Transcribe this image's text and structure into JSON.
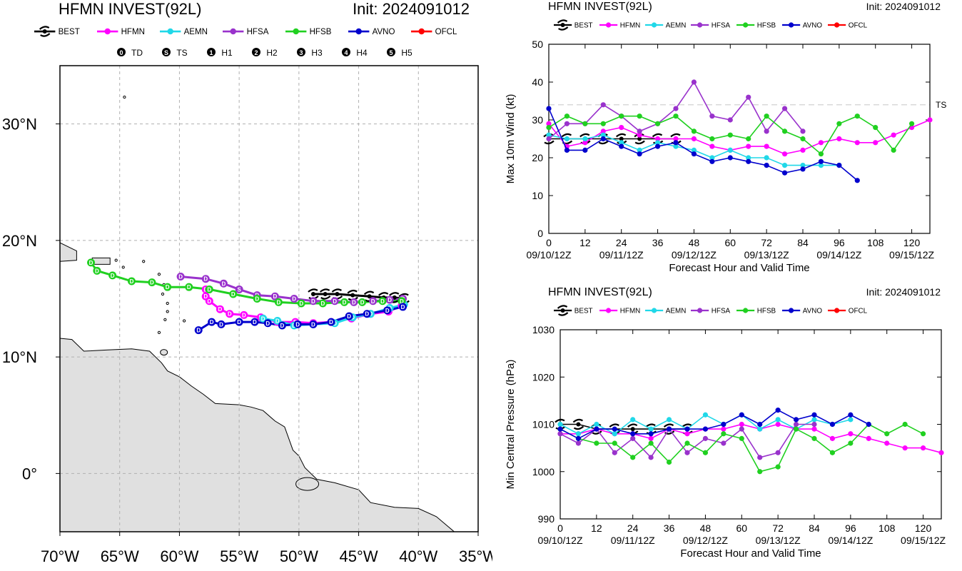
{
  "colors": {
    "BEST": "#000000",
    "HFMN": "#ff00ff",
    "AEMN": "#20d8e8",
    "HFSA": "#9932cc",
    "HFSB": "#20d020",
    "AVNO": "#0000cd",
    "OFCL": "#ff0000",
    "land": "#e0e0e0",
    "grid": "#b0b0b0",
    "ts_line": "#d8d8d8"
  },
  "legend": {
    "models": [
      "BEST",
      "HFMN",
      "AEMN",
      "HFSA",
      "HFSB",
      "AVNO",
      "OFCL"
    ],
    "intensity": [
      {
        "symbol": "0",
        "label": "TD"
      },
      {
        "symbol": "S",
        "label": "TS"
      },
      {
        "symbol": "1",
        "label": "H1"
      },
      {
        "symbol": "2",
        "label": "H2"
      },
      {
        "symbol": "3",
        "label": "H3"
      },
      {
        "symbol": "4",
        "label": "H4"
      },
      {
        "symbol": "5",
        "label": "H5"
      }
    ]
  },
  "chart_data": [
    {
      "type": "scatter",
      "name": "track-map",
      "title": "HFMN INVEST(92L)",
      "subtitle": "Init: 2024091012",
      "xlabel": "",
      "ylabel": "",
      "xlim": [
        -70,
        -35
      ],
      "ylim": [
        -5,
        35
      ],
      "x_ticks": [
        "70°W",
        "65°W",
        "60°W",
        "55°W",
        "50°W",
        "45°W",
        "40°W",
        "35°W"
      ],
      "y_ticks": [
        "0°",
        "10°N",
        "20°N",
        "30°N"
      ],
      "grid": true,
      "series": [
        {
          "name": "BEST",
          "points": [
            [
              -41.2,
              15.0
            ],
            [
              -42.0,
              15.1
            ],
            [
              -42.9,
              15.1
            ],
            [
              -44.1,
              15.2
            ],
            [
              -45.5,
              15.3
            ],
            [
              -46.8,
              15.4
            ],
            [
              -47.8,
              15.4
            ],
            [
              -48.8,
              15.4
            ]
          ],
          "labels": [
            "TD",
            "TD",
            "TD",
            "TD",
            "TD",
            "TD",
            "TD",
            "TD"
          ]
        },
        {
          "name": "HFMN",
          "points": [
            [
              -41.4,
              14.4
            ],
            [
              -42.5,
              13.9
            ],
            [
              -44.0,
              13.7
            ],
            [
              -45.6,
              13.3
            ],
            [
              -47.3,
              13.0
            ],
            [
              -48.8,
              12.9
            ],
            [
              -50.3,
              13.0
            ],
            [
              -51.8,
              13.0
            ],
            [
              -53.2,
              13.4
            ],
            [
              -54.6,
              13.6
            ],
            [
              -55.8,
              13.7
            ],
            [
              -56.6,
              14.1
            ],
            [
              -57.5,
              14.8
            ],
            [
              -57.8,
              15.2
            ],
            [
              -57.8,
              15.8
            ]
          ],
          "labels": [
            "TD",
            "TD",
            "TD",
            "TD",
            "TD",
            "TD",
            "TD",
            "TD",
            "TD",
            "TD",
            "TD",
            "TD",
            "TD",
            "TD",
            "TD"
          ]
        },
        {
          "name": "AEMN",
          "points": [
            [
              -41.2,
              14.5
            ],
            [
              -42.4,
              14.2
            ],
            [
              -44.0,
              13.7
            ],
            [
              -45.5,
              13.4
            ],
            [
              -47.0,
              12.9
            ],
            [
              -48.8,
              12.8
            ],
            [
              -50.4,
              12.7
            ],
            [
              -51.8,
              13.1
            ],
            [
              -53.0,
              13.3
            ]
          ],
          "labels": [
            "TD",
            "TD",
            "TD",
            "TD",
            "TD",
            "TD",
            "TD",
            "TD",
            "TD"
          ]
        },
        {
          "name": "HFSA",
          "points": [
            [
              -41.3,
              15.0
            ],
            [
              -42.4,
              14.9
            ],
            [
              -43.8,
              14.8
            ],
            [
              -45.4,
              14.7
            ],
            [
              -47.0,
              14.8
            ],
            [
              -48.8,
              14.8
            ],
            [
              -50.4,
              15.0
            ],
            [
              -52.0,
              15.2
            ],
            [
              -53.5,
              15.3
            ],
            [
              -55.0,
              15.8
            ],
            [
              -56.3,
              16.3
            ],
            [
              -57.8,
              16.7
            ],
            [
              -59.9,
              16.9
            ]
          ],
          "labels": [
            "TD",
            "TD",
            "TD",
            "TD",
            "TD",
            "TD",
            "TD",
            "TD",
            "TD",
            "TS",
            "TD",
            "TD",
            "TD"
          ]
        },
        {
          "name": "HFSB",
          "points": [
            [
              -41.4,
              14.8
            ],
            [
              -43.0,
              14.8
            ],
            [
              -44.7,
              14.7
            ],
            [
              -46.2,
              14.7
            ],
            [
              -48.0,
              14.6
            ],
            [
              -49.8,
              14.6
            ],
            [
              -51.7,
              14.7
            ],
            [
              -53.5,
              15.0
            ],
            [
              -55.5,
              15.4
            ],
            [
              -57.5,
              15.8
            ],
            [
              -59.2,
              16.0
            ],
            [
              -61.0,
              16.0
            ],
            [
              -62.3,
              16.4
            ],
            [
              -64.0,
              16.5
            ],
            [
              -65.6,
              17.0
            ],
            [
              -66.9,
              17.4
            ],
            [
              -67.4,
              18.1
            ]
          ],
          "labels": [
            "TD",
            "TD",
            "TD",
            "TD",
            "TD",
            "TD",
            "TD",
            "TD",
            "TD",
            "TD",
            "TD",
            "TD",
            "TD",
            "TD",
            "TD",
            "TD",
            "TD"
          ]
        },
        {
          "name": "AVNO",
          "points": [
            [
              -41.3,
              14.3
            ],
            [
              -42.6,
              14.0
            ],
            [
              -44.3,
              13.7
            ],
            [
              -45.8,
              13.5
            ],
            [
              -47.3,
              13.0
            ],
            [
              -48.8,
              12.8
            ],
            [
              -50.1,
              12.8
            ],
            [
              -51.4,
              12.7
            ],
            [
              -52.6,
              12.9
            ],
            [
              -53.7,
              13.0
            ],
            [
              -55.0,
              13.0
            ],
            [
              -56.5,
              12.8
            ],
            [
              -57.3,
              13.0
            ],
            [
              -58.4,
              12.3
            ]
          ],
          "labels": [
            "TD",
            "TD",
            "TD",
            "TD",
            "TD",
            "TD",
            "TD",
            "TD",
            "TD",
            "TD",
            "TD",
            "TD",
            "TD",
            "TD"
          ]
        }
      ]
    },
    {
      "type": "line",
      "name": "wind-chart",
      "title": "HFMN INVEST(92L)",
      "subtitle": "Init: 2024091012",
      "xlabel": "Forecast Hour and Valid Time",
      "ylabel": "Max 10m Wind (kt)",
      "xlim": [
        0,
        126
      ],
      "ylim": [
        0,
        50
      ],
      "x_ticks": [
        0,
        12,
        24,
        36,
        48,
        60,
        72,
        84,
        96,
        108,
        120
      ],
      "x_dates": [
        "09/10/12Z",
        "09/11/12Z",
        "09/12/12Z",
        "09/13/12Z",
        "09/14/12Z",
        "09/15/12Z"
      ],
      "y_ticks": [
        0,
        10,
        20,
        30,
        40,
        50
      ],
      "reference_line": {
        "value": 34,
        "label": "TS"
      },
      "series": [
        {
          "name": "BEST",
          "x": [
            0,
            6,
            12,
            18,
            24,
            30,
            36,
            42
          ],
          "values": [
            25,
            25,
            25,
            25,
            25,
            25,
            25,
            25
          ]
        },
        {
          "name": "HFMN",
          "x": [
            0,
            6,
            12,
            18,
            24,
            30,
            36,
            42,
            48,
            54,
            60,
            66,
            72,
            78,
            84,
            90,
            96,
            102,
            108,
            114,
            120,
            126
          ],
          "values": [
            29,
            23,
            24,
            27,
            28,
            26,
            25,
            25,
            25,
            23,
            22,
            23,
            23,
            21,
            22,
            24,
            25,
            24,
            24,
            26,
            28,
            30
          ]
        },
        {
          "name": "AEMN",
          "x": [
            0,
            6,
            12,
            18,
            24,
            30,
            36,
            42,
            48,
            54,
            60,
            66,
            72,
            78,
            84,
            90,
            96
          ],
          "values": [
            26,
            25,
            25,
            26,
            24,
            22,
            24,
            23,
            22,
            20,
            22,
            20,
            20,
            18,
            18,
            18,
            18
          ]
        },
        {
          "name": "HFSA",
          "x": [
            0,
            6,
            12,
            18,
            24,
            30,
            36,
            42,
            48,
            54,
            60,
            66,
            72,
            78,
            84
          ],
          "values": [
            25,
            29,
            29,
            34,
            31,
            27,
            29,
            33,
            40,
            31,
            30,
            36,
            27,
            33,
            27
          ]
        },
        {
          "name": "HFSB",
          "x": [
            0,
            6,
            12,
            18,
            24,
            30,
            36,
            42,
            48,
            54,
            60,
            66,
            72,
            78,
            84,
            90,
            96,
            102,
            108,
            114,
            120
          ],
          "values": [
            28,
            31,
            29,
            29,
            31,
            31,
            29,
            31,
            27,
            25,
            26,
            25,
            31,
            27,
            25,
            21,
            29,
            31,
            28,
            22,
            29
          ]
        },
        {
          "name": "AVNO",
          "x": [
            0,
            6,
            12,
            18,
            24,
            30,
            36,
            42,
            48,
            54,
            60,
            66,
            72,
            78,
            84,
            90,
            96,
            102
          ],
          "values": [
            33,
            22,
            22,
            25,
            23,
            21,
            23,
            24,
            21,
            19,
            20,
            19,
            18,
            16,
            17,
            19,
            18,
            14
          ]
        }
      ]
    },
    {
      "type": "line",
      "name": "pressure-chart",
      "title": "HFMN INVEST(92L)",
      "subtitle": "Init: 2024091012",
      "xlabel": "Forecast Hour and Valid Time",
      "ylabel": "Min Central Pressure (hPa)",
      "xlim": [
        0,
        126
      ],
      "ylim": [
        990,
        1030
      ],
      "x_ticks": [
        0,
        12,
        24,
        36,
        48,
        60,
        72,
        84,
        96,
        108,
        120
      ],
      "x_dates": [
        "09/10/12Z",
        "09/11/12Z",
        "09/12/12Z",
        "09/13/12Z",
        "09/14/12Z",
        "09/15/12Z"
      ],
      "y_ticks": [
        990,
        1000,
        1010,
        1020,
        1030
      ],
      "series": [
        {
          "name": "BEST",
          "x": [
            0,
            6,
            12,
            18,
            24,
            30,
            36,
            42
          ],
          "values": [
            1010,
            1010,
            1009,
            1009,
            1009,
            1009,
            1009,
            1009
          ]
        },
        {
          "name": "HFMN",
          "x": [
            0,
            6,
            12,
            18,
            24,
            30,
            36,
            42,
            48,
            54,
            60,
            66,
            72,
            78,
            84,
            90,
            96,
            102,
            108,
            114,
            120,
            126
          ],
          "values": [
            1008,
            1008,
            1009,
            1008,
            1008,
            1007,
            1009,
            1008,
            1009,
            1009,
            1010,
            1009,
            1010,
            1009,
            1009,
            1007,
            1008,
            1007,
            1006,
            1005,
            1005,
            1004
          ]
        },
        {
          "name": "AEMN",
          "x": [
            0,
            6,
            12,
            18,
            24,
            30,
            36,
            42,
            48,
            54,
            60,
            66,
            72,
            78,
            84,
            90,
            96
          ],
          "values": [
            1010,
            1008,
            1010,
            1008,
            1011,
            1009,
            1011,
            1009,
            1012,
            1010,
            1012,
            1009,
            1011,
            1009,
            1011,
            1010,
            1011
          ]
        },
        {
          "name": "HFSA",
          "x": [
            0,
            6,
            12,
            18,
            24,
            30,
            36,
            42,
            48,
            54,
            60,
            66,
            72,
            78,
            84
          ],
          "values": [
            1008,
            1006,
            1009,
            1004,
            1007,
            1003,
            1009,
            1004,
            1007,
            1006,
            1009,
            1003,
            1004,
            1010,
            1010
          ]
        },
        {
          "name": "HFSB",
          "x": [
            0,
            6,
            12,
            18,
            24,
            30,
            36,
            42,
            48,
            54,
            60,
            66,
            72,
            78,
            84,
            90,
            96,
            102,
            108,
            114,
            120
          ],
          "values": [
            1009,
            1007,
            1006,
            1006,
            1003,
            1006,
            1002,
            1006,
            1004,
            1008,
            1007,
            1000,
            1001,
            1009,
            1007,
            1004,
            1006,
            1010,
            1008,
            1010,
            1008
          ]
        },
        {
          "name": "AVNO",
          "x": [
            0,
            6,
            12,
            18,
            24,
            30,
            36,
            42,
            48,
            54,
            60,
            66,
            72,
            78,
            84,
            90,
            96,
            102
          ],
          "values": [
            1009,
            1007,
            1009,
            1009,
            1008,
            1008,
            1009,
            1009,
            1009,
            1010,
            1012,
            1010,
            1013,
            1011,
            1012,
            1010,
            1012,
            1010
          ]
        }
      ]
    }
  ]
}
